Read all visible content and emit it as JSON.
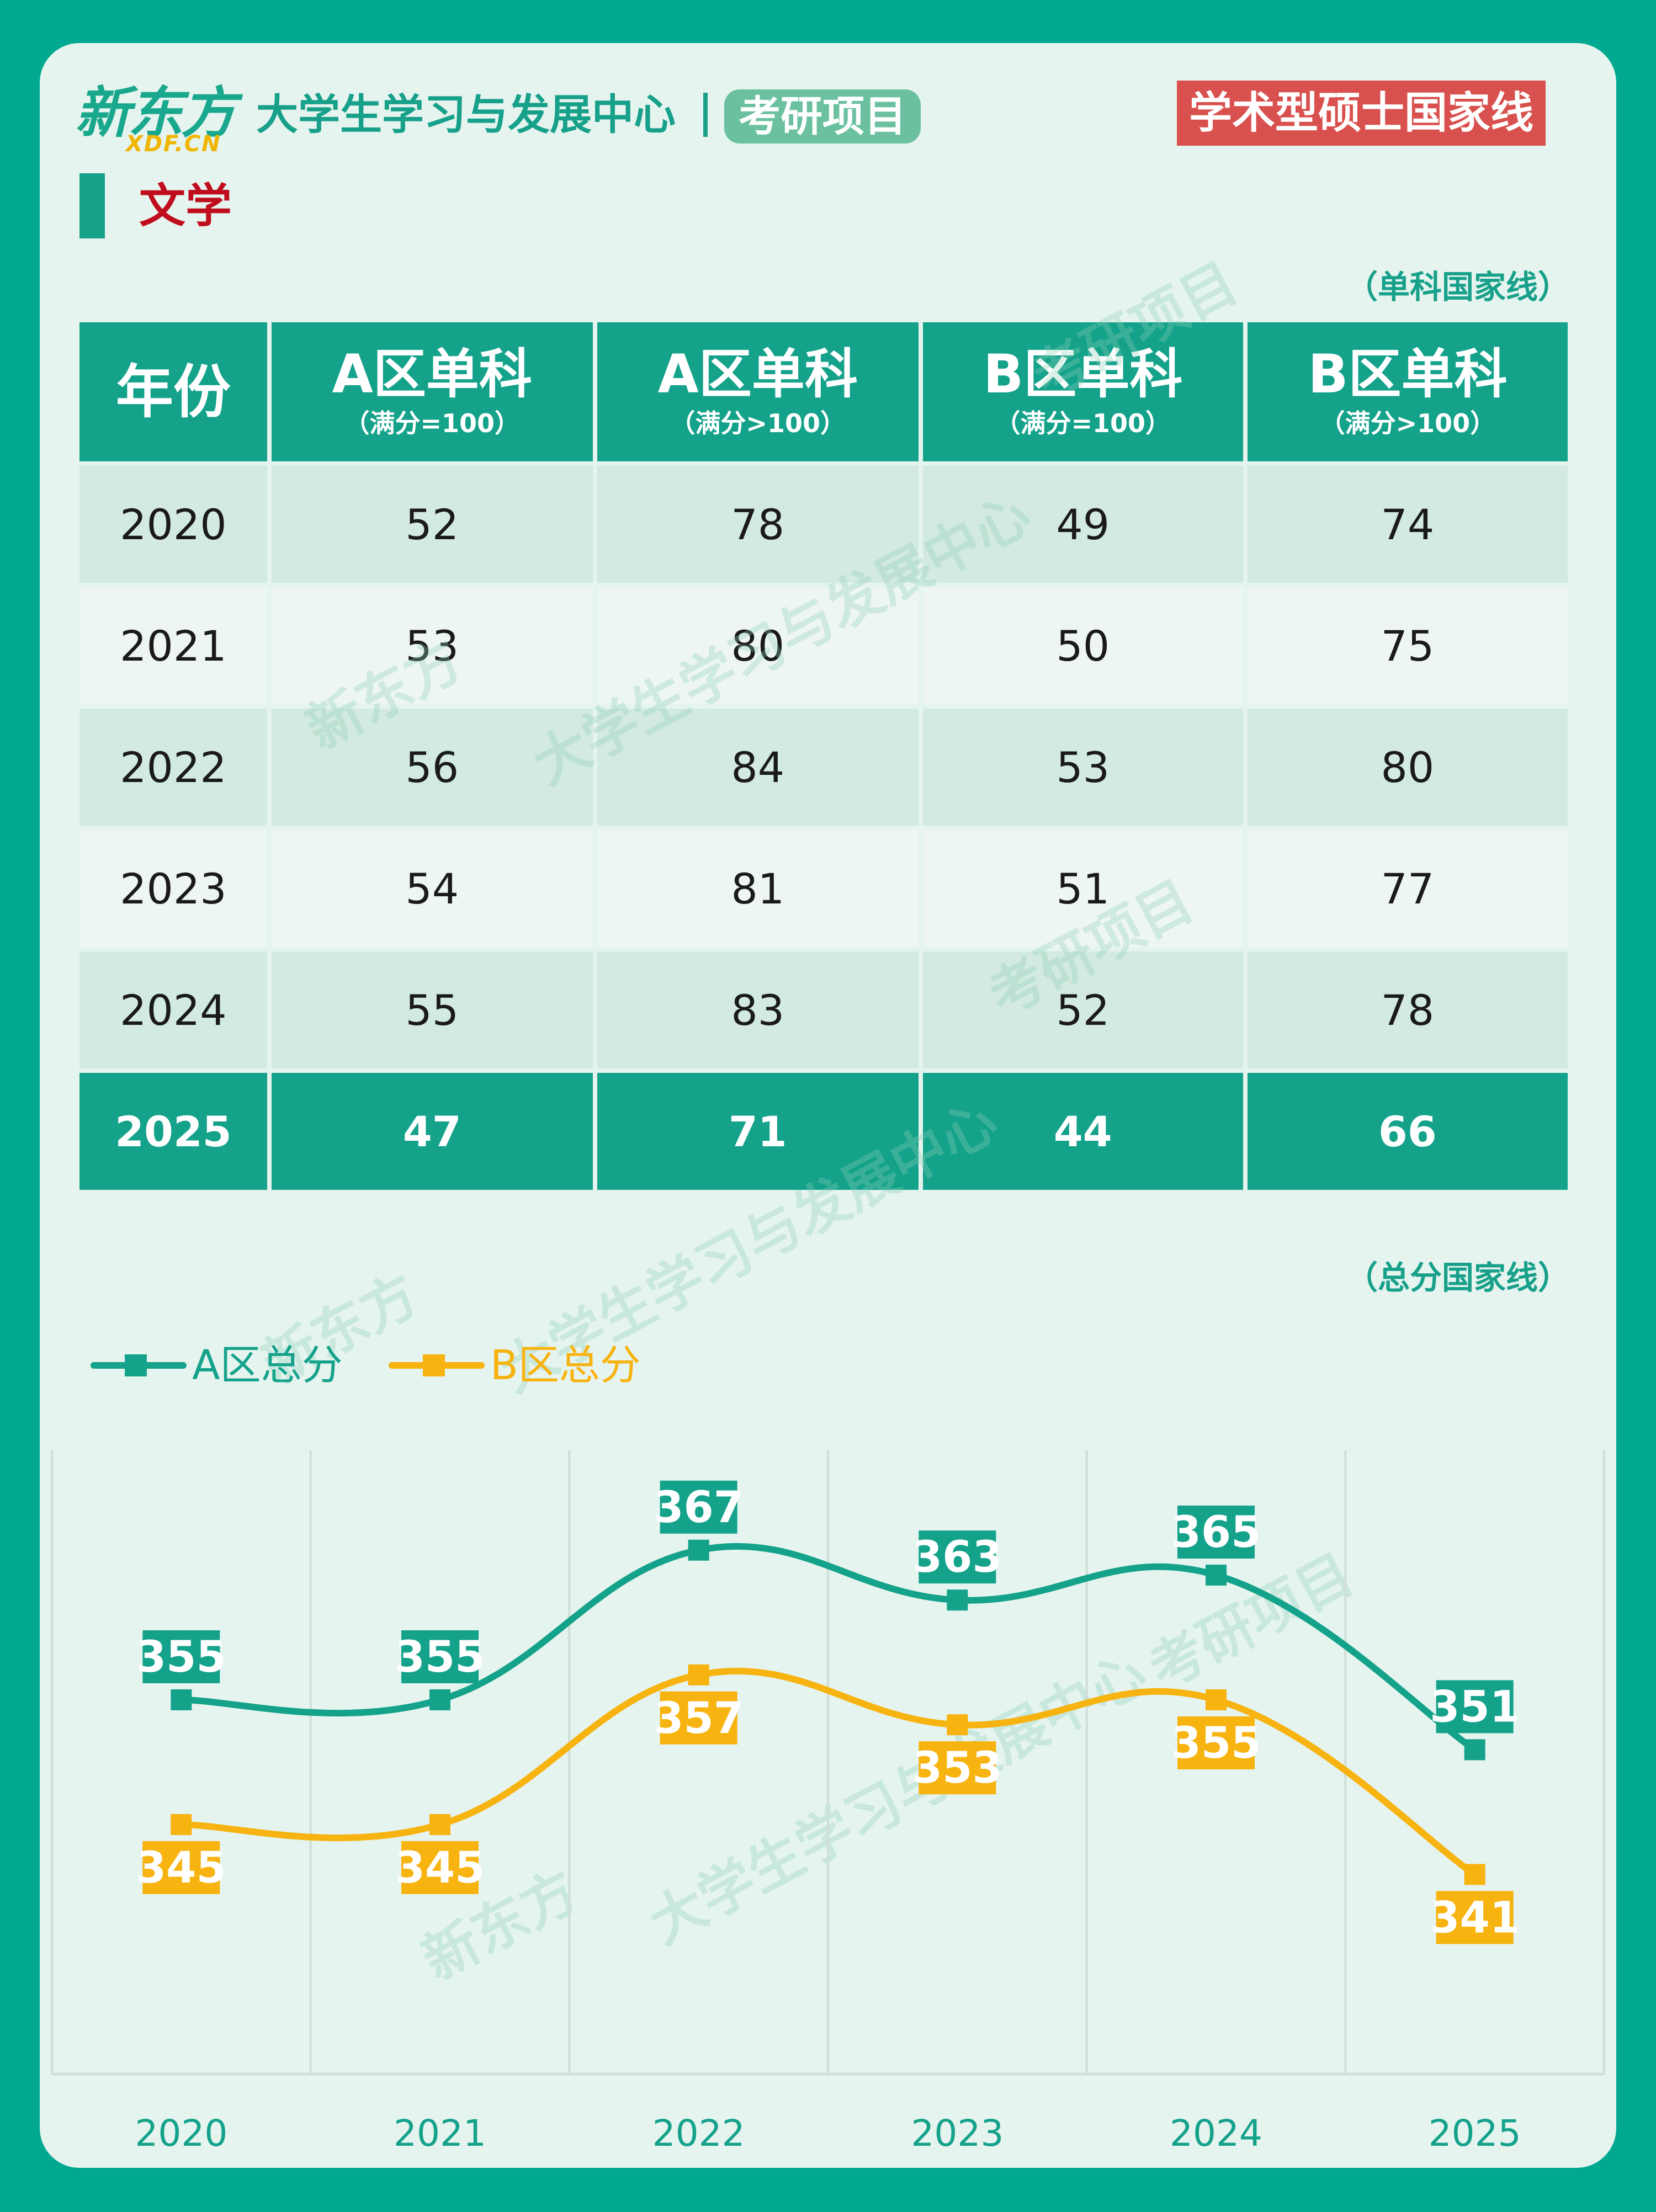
{
  "header": {
    "logo_cn": "新东方",
    "logo_en": "XDF.CN",
    "center_name": "大学生学习与发展中心",
    "project": "考研项目",
    "badge": "学术型硕士国家线"
  },
  "subject": "文学",
  "table_section_note": "（单科国家线）",
  "chart_section_note": "（总分国家线）",
  "watermark": {
    "logo": "新东方",
    "text": "大学生学习与发展中心",
    "project": "考研项目"
  },
  "table": {
    "columns": [
      {
        "title": "年份",
        "sub": ""
      },
      {
        "title": "A区单科",
        "sub": "（满分=100）"
      },
      {
        "title": "A区单科",
        "sub": "（满分>100）"
      },
      {
        "title": "B区单科",
        "sub": "（满分=100）"
      },
      {
        "title": "B区单科",
        "sub": "（满分>100）"
      }
    ],
    "rows": [
      [
        "2020",
        "52",
        "78",
        "49",
        "74"
      ],
      [
        "2021",
        "53",
        "80",
        "50",
        "75"
      ],
      [
        "2022",
        "56",
        "84",
        "53",
        "80"
      ],
      [
        "2023",
        "54",
        "81",
        "51",
        "77"
      ],
      [
        "2024",
        "55",
        "83",
        "52",
        "78"
      ],
      [
        "2025",
        "47",
        "71",
        "44",
        "66"
      ]
    ]
  },
  "colors": {
    "teal": "#14a28b",
    "amber": "#f7b30f",
    "red_badge": "#d9514e",
    "card_bg": "#e6f4ef"
  },
  "chart_data": {
    "type": "line",
    "x": [
      "2020",
      "2021",
      "2022",
      "2023",
      "2024",
      "2025"
    ],
    "series": [
      {
        "name": "A区总分",
        "values": [
          355,
          355,
          367,
          363,
          365,
          351
        ],
        "color": "#14a28b",
        "label_position": "above"
      },
      {
        "name": "B区总分",
        "values": [
          345,
          345,
          357,
          353,
          355,
          341
        ],
        "color": "#f7b30f",
        "label_position": "below"
      }
    ],
    "ylim": [
      325,
      375
    ],
    "legend": "top-left",
    "grid": "vertical",
    "smooth": true
  }
}
